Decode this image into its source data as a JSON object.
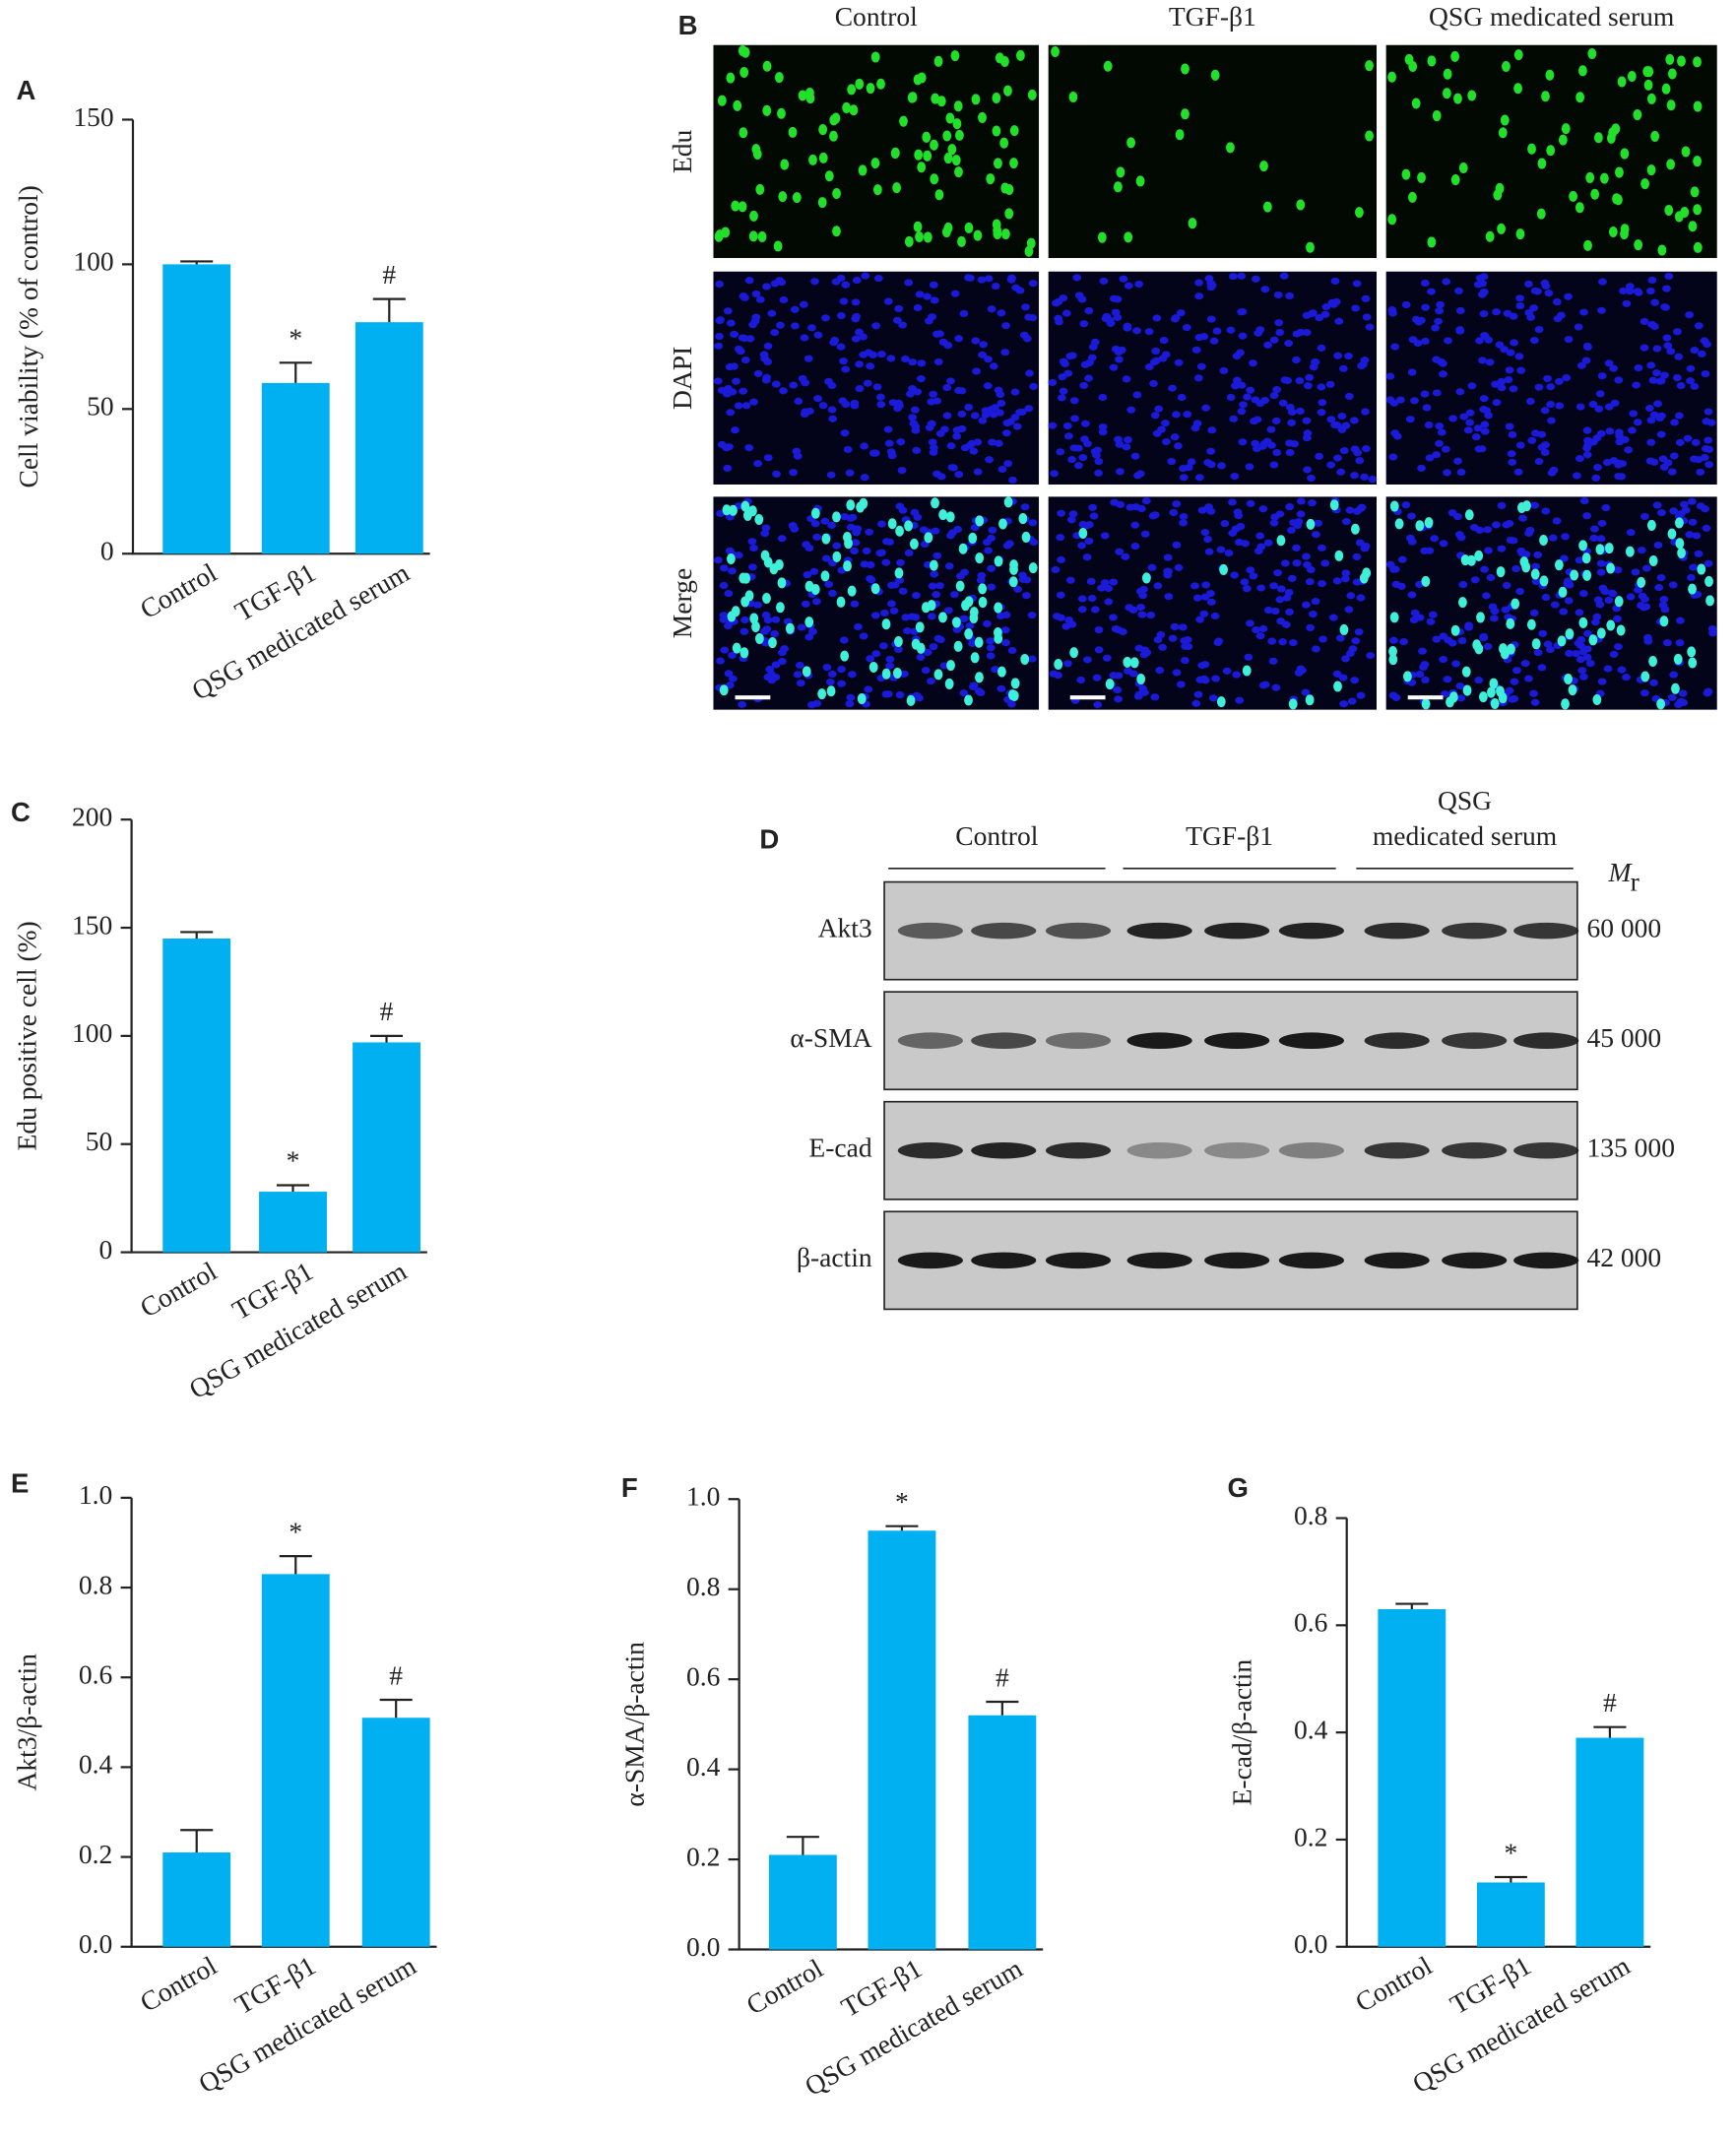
{
  "chart_data": [
    {
      "type": "bar",
      "panel": "A",
      "ylabel": "Cell viability (% of control)",
      "categories": [
        "Control",
        "TGF-β1",
        "QSG medicated serum"
      ],
      "values": [
        100,
        59,
        80
      ],
      "errors": [
        1,
        7,
        8
      ],
      "annotations": [
        null,
        "*",
        "#"
      ],
      "color": "#00b0f0",
      "ylim": [
        0,
        150
      ],
      "yticks": [
        0,
        50,
        100,
        150
      ]
    },
    {
      "type": "bar",
      "panel": "C",
      "ylabel": "Edu positive cell (%)",
      "categories": [
        "Control",
        "TGF-β1",
        "QSG medicated serum"
      ],
      "values": [
        145,
        28,
        97
      ],
      "errors": [
        3,
        3,
        3
      ],
      "annotations": [
        null,
        "*",
        "#"
      ],
      "color": "#00b0f0",
      "ylim": [
        0,
        200
      ],
      "yticks": [
        0,
        50,
        100,
        150,
        200
      ]
    },
    {
      "type": "bar",
      "panel": "E",
      "ylabel": "Akt3/β-actin",
      "categories": [
        "Control",
        "TGF-β1",
        "QSG medicated serum"
      ],
      "values": [
        0.21,
        0.83,
        0.51
      ],
      "errors": [
        0.05,
        0.04,
        0.04
      ],
      "annotations": [
        null,
        "*",
        "#"
      ],
      "color": "#00b0f0",
      "ylim": [
        0,
        1.0
      ],
      "yticks": [
        {
          "value": 0,
          "label": "0.0"
        },
        0.2,
        0.4,
        0.6,
        0.8,
        {
          "value": 1,
          "label": "1.0"
        }
      ]
    },
    {
      "type": "bar",
      "panel": "F",
      "ylabel": "α-SMA/β-actin",
      "categories": [
        "Control",
        "TGF-β1",
        "QSG medicated serum"
      ],
      "values": [
        0.21,
        0.93,
        0.52
      ],
      "errors": [
        0.04,
        0.01,
        0.03
      ],
      "annotations": [
        null,
        "*",
        "#"
      ],
      "color": "#00b0f0",
      "ylim": [
        0,
        1.0
      ],
      "yticks": [
        {
          "value": 0,
          "label": "0.0"
        },
        0.2,
        0.4,
        0.6,
        0.8,
        {
          "value": 1,
          "label": "1.0"
        }
      ]
    },
    {
      "type": "bar",
      "panel": "G",
      "ylabel": "E-cad/β-actin",
      "categories": [
        "Control",
        "TGF-β1",
        "QSG medicated serum"
      ],
      "values": [
        0.63,
        0.12,
        0.39
      ],
      "errors": [
        0.01,
        0.01,
        0.02
      ],
      "annotations": [
        null,
        "*",
        "#"
      ],
      "color": "#00b0f0",
      "ylim": [
        0,
        0.8
      ],
      "yticks": [
        {
          "value": 0,
          "label": "0.0"
        },
        0.2,
        0.4,
        0.6,
        0.8
      ]
    }
  ],
  "microscopy": {
    "panel": "B",
    "columns": [
      "Control",
      "TGF-β1",
      "QSG medicated serum"
    ],
    "rows": [
      "Edu",
      "DAPI",
      "Merge"
    ]
  },
  "western_blot": {
    "panel": "D",
    "groups": [
      [
        "Control"
      ],
      [
        "TGF-β1"
      ],
      [
        "QSG",
        "medicated serum"
      ]
    ],
    "mr_symbol": "M",
    "mr_subscript": "r",
    "rows": [
      {
        "name": "Akt3",
        "mr": "60 000"
      },
      {
        "name": "α-SMA",
        "mr": "45 000"
      },
      {
        "name": "E-cad",
        "mr": "135 000"
      },
      {
        "name": "β-actin",
        "mr": "42 000"
      }
    ]
  }
}
